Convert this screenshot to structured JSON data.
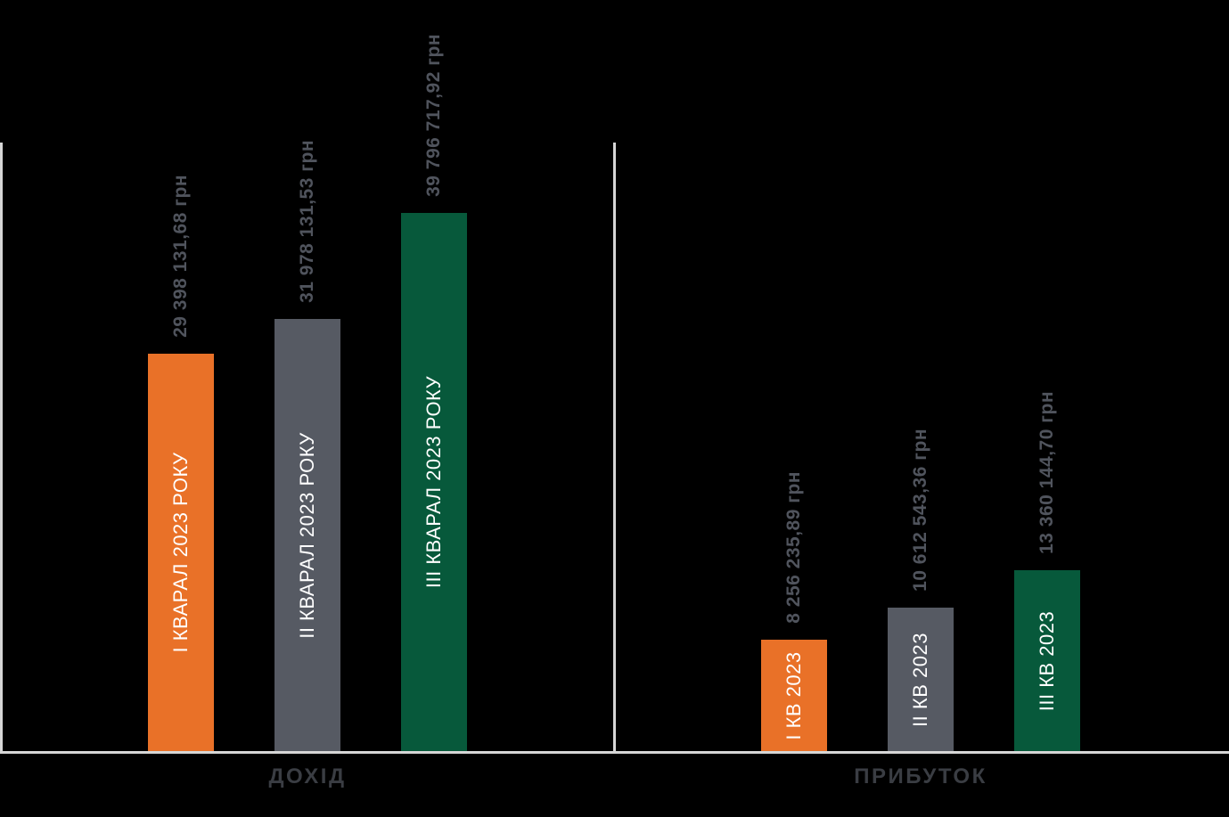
{
  "chart_data": [
    {
      "type": "bar",
      "group_label": "ДОХІД",
      "categories": [
        "І КВАРАЛ 2023 РОКУ",
        "ІІ КВАРАЛ 2023 РОКУ",
        "ІІІ КВАРАЛ 2023 РОКУ"
      ],
      "values": [
        29398131.68,
        31978131.53,
        39796717.92
      ],
      "value_labels": [
        "29 398 131,68 грн",
        "31 978 131,53 грн",
        "39 796 717,92 грн"
      ],
      "bar_colors": [
        "#E97128",
        "#565A63",
        "#07593B"
      ],
      "ylim": [
        0,
        45000000
      ],
      "grid": false,
      "legend": false,
      "orientation": "vertical",
      "value_label_rotation": 90,
      "category_label_position": "inside-bar-rotated"
    },
    {
      "type": "bar",
      "group_label": "ПРИБУТОК",
      "categories": [
        "І КВ 2023",
        "ІІ КВ 2023",
        "ІІІ КВ 2023"
      ],
      "values": [
        8256235.89,
        10612543.36,
        13360144.7
      ],
      "value_labels": [
        "8 256 235,89 грн",
        "10 612 543,36 грн",
        "13 360 144,70 грн"
      ],
      "bar_colors": [
        "#E97128",
        "#565A63",
        "#07593B"
      ],
      "ylim": [
        0,
        45000000
      ],
      "grid": false,
      "legend": false,
      "orientation": "vertical",
      "value_label_rotation": 90,
      "category_label_position": "inside-bar-rotated"
    }
  ],
  "colors": {
    "background": "#000000",
    "axis_line": "#D6D6D6",
    "value_label_text": "#50545D",
    "bar_label_text": "#FFFFFF",
    "category_label_text": "#3A3D43",
    "accent_orange": "#E97128",
    "accent_gray": "#565A63",
    "accent_green": "#07593B"
  }
}
